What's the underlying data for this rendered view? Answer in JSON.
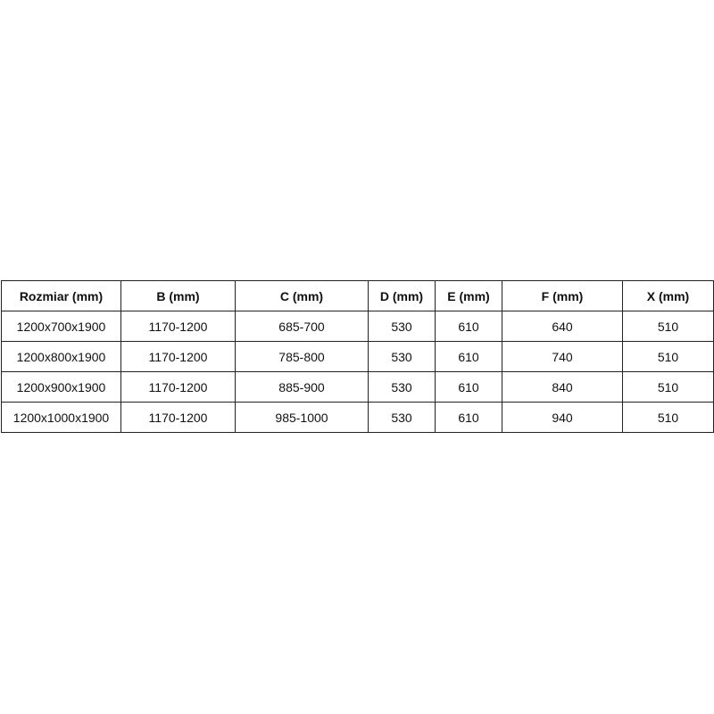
{
  "table": {
    "headers": [
      "Rozmiar (mm)",
      "B (mm)",
      "C (mm)",
      "D (mm)",
      "E (mm)",
      "F (mm)",
      "X (mm)"
    ],
    "rows": [
      [
        "1200x700x1900",
        "1170-1200",
        "685-700",
        "530",
        "610",
        "640",
        "510"
      ],
      [
        "1200x800x1900",
        "1170-1200",
        "785-800",
        "530",
        "610",
        "740",
        "510"
      ],
      [
        "1200x900x1900",
        "1170-1200",
        "885-900",
        "530",
        "610",
        "840",
        "510"
      ],
      [
        "1200x1000x1900",
        "1170-1200",
        "985-1000",
        "530",
        "610",
        "940",
        "510"
      ]
    ]
  }
}
